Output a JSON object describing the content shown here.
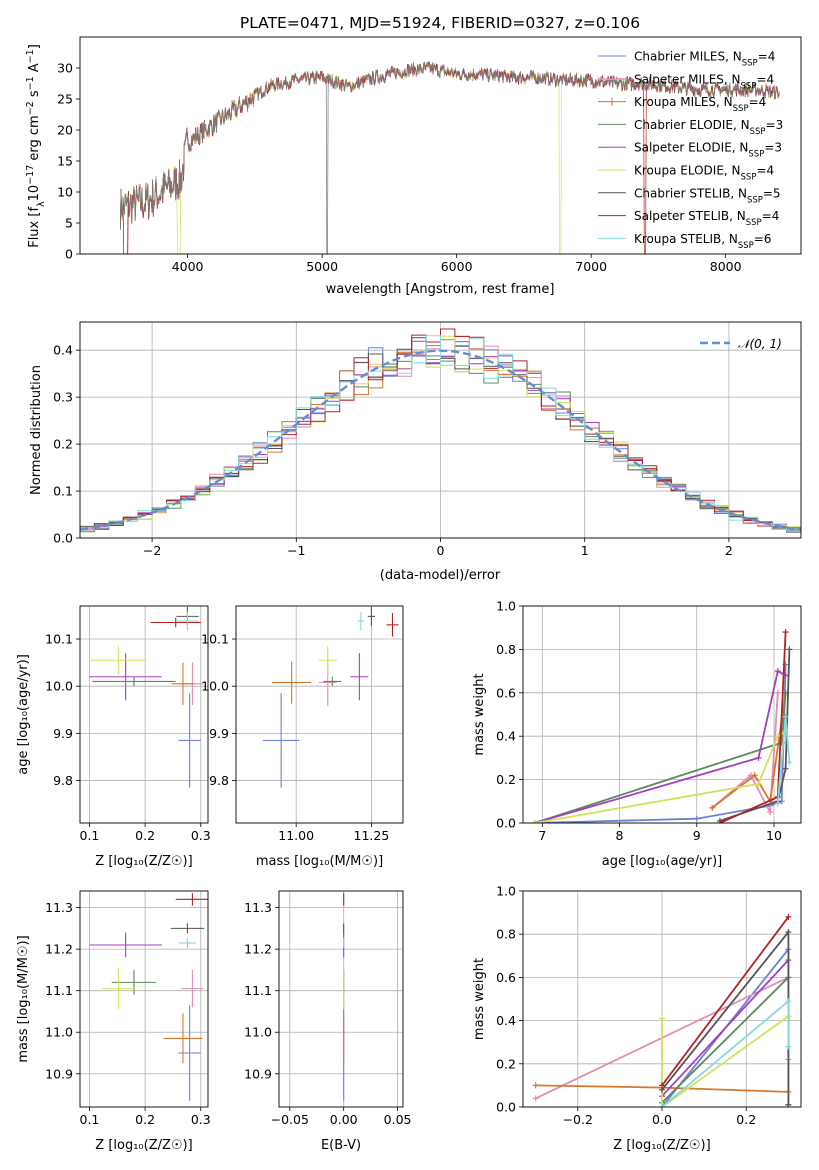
{
  "title": "PLATE=0471, MJD=51924, FIBERID=0327, z=0.106",
  "model_colors": [
    "#6a82d6",
    "#e38cb8",
    "#d8762b",
    "#5b8a5e",
    "#a63cbf",
    "#d0e25a",
    "#545454",
    "#b22424",
    "#88d8dc"
  ],
  "chart_data": [
    {
      "type": "line",
      "id": "spectrum",
      "xlabel": "wavelength [Angstrom, rest frame]",
      "ylabel": "Flux [f$_\\lambda$10$^{-17}$ erg cm$^{-2}$ s$^{-1}$ A$^{-1}$]",
      "ylabel_parts": [
        "Flux [f",
        "λ",
        "10",
        "−17",
        " erg cm",
        "−2",
        " s",
        "−1",
        " A",
        "−1",
        "]"
      ],
      "xlim": [
        3200,
        8560
      ],
      "ylim": [
        0,
        35
      ],
      "xticks": [
        4000,
        5000,
        6000,
        7000,
        8000
      ],
      "yticks": [
        0,
        5,
        10,
        15,
        20,
        25,
        30
      ],
      "grid": false,
      "legend_position": "top-right",
      "series": [
        {
          "name": "Chabrier MILES, N",
          "sub": "SSP",
          "tail": "=4"
        },
        {
          "name": "Salpeter MILES, N",
          "sub": "SSP",
          "tail": "=4"
        },
        {
          "name": "Kroupa MILES, N",
          "sub": "SSP",
          "tail": "=4"
        },
        {
          "name": "Chabrier ELODIE, N",
          "sub": "SSP",
          "tail": "=3"
        },
        {
          "name": "Salpeter ELODIE, N",
          "sub": "SSP",
          "tail": "=3"
        },
        {
          "name": "Kroupa ELODIE, N",
          "sub": "SSP",
          "tail": "=4"
        },
        {
          "name": "Chabrier STELIB, N",
          "sub": "SSP",
          "tail": "=5"
        },
        {
          "name": "Salpeter STELIB, N",
          "sub": "SSP",
          "tail": "=4"
        },
        {
          "name": "Kroupa STELIB, N",
          "sub": "SSP",
          "tail": "=6"
        }
      ],
      "data_trend": {
        "x": [
          3500,
          3700,
          3800,
          3950,
          4000,
          4200,
          4400,
          4600,
          4800,
          5000,
          5200,
          5400,
          5600,
          5800,
          6000,
          6200,
          6400,
          6600,
          6800,
          7000,
          7200,
          7400,
          7600,
          7800,
          8000,
          8200,
          8400
        ],
        "y": [
          7.5,
          8.5,
          10,
          12,
          18,
          21,
          24,
          27,
          28,
          28.5,
          27,
          28.5,
          29.5,
          30,
          29,
          29,
          28.5,
          28.5,
          28,
          28,
          27.5,
          27.5,
          27,
          26.5,
          26.5,
          26.5,
          26
        ]
      }
    },
    {
      "type": "step",
      "id": "residuals",
      "xlabel": "(data-model)/error",
      "ylabel": "Normed distribution",
      "xlim": [
        -2.5,
        2.5
      ],
      "ylim": [
        0,
        0.46
      ],
      "xticks": [
        -2,
        -1,
        0,
        1,
        2
      ],
      "yticks": [
        0.0,
        0.1,
        0.2,
        0.3,
        0.4
      ],
      "grid": true,
      "legend_position": "top-right",
      "legend": "𝒩(0, 1)",
      "bin_width": 0.1
    },
    {
      "type": "scatter",
      "id": "age_vs_Z",
      "xlabel": "Z [log₁₀(Z/Z☉)]",
      "ylabel": "age  [log₁₀(age/yr)]",
      "xlim": [
        0.083,
        0.313
      ],
      "ylim": [
        9.71,
        10.17
      ],
      "xticks": [
        0.1,
        0.2,
        0.3
      ],
      "yticks": [
        9.8,
        9.9,
        10.0,
        10.1
      ],
      "grid": true,
      "points": [
        {
          "x": 0.28,
          "y": 9.885,
          "xerr": 0.02,
          "yerr": 0.1
        },
        {
          "x": 0.285,
          "y": 10.005,
          "xerr": 0.02,
          "yerr": 0.045
        },
        {
          "x": 0.268,
          "y": 10.005,
          "xerr": 0.02,
          "yerr": 0.045
        },
        {
          "x": 0.18,
          "y": 10.01,
          "xerr": 0.075,
          "yerr": 0.01
        },
        {
          "x": 0.165,
          "y": 10.02,
          "xerr": 0.065,
          "yerr": 0.05
        },
        {
          "x": 0.152,
          "y": 10.055,
          "xerr": 0.05,
          "yerr": 0.03
        },
        {
          "x": 0.276,
          "y": 10.148,
          "xerr": 0.02,
          "yerr": 0.02
        },
        {
          "x": 0.255,
          "y": 10.135,
          "xerr": 0.045,
          "yerr": 0.01
        },
        {
          "x": 0.276,
          "y": 10.138,
          "xerr": 0.02,
          "yerr": 0.02
        }
      ]
    },
    {
      "type": "scatter",
      "id": "age_vs_mass",
      "xlabel": "mass [log₁₀(M/M☉)]",
      "ylabel": "",
      "xlim": [
        10.8,
        11.355
      ],
      "ylim": [
        9.71,
        10.17
      ],
      "xticks": [
        11.0,
        11.25
      ],
      "yticks": [
        9.8,
        9.9,
        10.0,
        10.1
      ],
      "grid": true,
      "points": [
        {
          "x": 10.95,
          "y": 9.885,
          "xerr": 0.06,
          "yerr": 0.1
        },
        {
          "x": 11.105,
          "y": 10.008,
          "xerr": 0.03,
          "yerr": 0.05
        },
        {
          "x": 10.985,
          "y": 10.008,
          "xerr": 0.065,
          "yerr": 0.045
        },
        {
          "x": 11.12,
          "y": 10.01,
          "xerr": 0.03,
          "yerr": 0.01
        },
        {
          "x": 11.21,
          "y": 10.02,
          "xerr": 0.03,
          "yerr": 0.05
        },
        {
          "x": 11.105,
          "y": 10.055,
          "xerr": 0.03,
          "yerr": 0.03
        },
        {
          "x": 11.25,
          "y": 10.148,
          "xerr": 0.012,
          "yerr": 0.02
        },
        {
          "x": 11.32,
          "y": 10.13,
          "xerr": 0.02,
          "yerr": 0.025
        },
        {
          "x": 11.215,
          "y": 10.138,
          "xerr": 0.012,
          "yerr": 0.02
        }
      ]
    },
    {
      "type": "line",
      "id": "mass_weight_vs_age",
      "xlabel": "age  [log₁₀(age/yr)]",
      "ylabel": "mass weight",
      "xlim": [
        6.75,
        10.35
      ],
      "ylim": [
        0,
        1.0
      ],
      "xticks": [
        7,
        8,
        9,
        10
      ],
      "yticks": [
        0.0,
        0.2,
        0.4,
        0.6,
        0.8,
        1.0
      ],
      "grid": true,
      "series": [
        {
          "x": [
            6.9,
            9.0,
            9.95,
            10.1,
            10.15
          ],
          "y": [
            0.0,
            0.02,
            0.08,
            0.1,
            0.73
          ]
        },
        {
          "x": [
            9.2,
            9.7,
            9.95,
            10.05
          ],
          "y": [
            0.07,
            0.22,
            0.05,
            0.6
          ]
        },
        {
          "x": [
            9.2,
            9.75,
            9.95,
            10.15
          ],
          "y": [
            0.07,
            0.22,
            0.1,
            0.6
          ]
        },
        {
          "x": [
            6.9,
            10.1,
            10.15
          ],
          "y": [
            0.0,
            0.37,
            0.6
          ]
        },
        {
          "x": [
            6.9,
            9.8,
            10.05,
            10.15
          ],
          "y": [
            0.0,
            0.3,
            0.7,
            0.68
          ]
        },
        {
          "x": [
            6.9,
            9.8,
            10.05,
            10.15
          ],
          "y": [
            0.0,
            0.18,
            0.4,
            0.42
          ]
        },
        {
          "x": [
            9.3,
            10.05,
            10.15,
            10.2
          ],
          "y": [
            0.01,
            0.1,
            0.25,
            0.8
          ]
        },
        {
          "x": [
            9.3,
            10.05,
            10.15
          ],
          "y": [
            0.0,
            0.12,
            0.88
          ]
        },
        {
          "x": [
            10.05,
            10.15,
            10.2
          ],
          "y": [
            0.09,
            0.49,
            0.28
          ]
        }
      ]
    },
    {
      "type": "scatter",
      "id": "mass_vs_Z",
      "xlabel": "Z [log₁₀(Z/Z☉)]",
      "ylabel": "mass [log₁₀(M/M☉)]",
      "xlim": [
        0.083,
        0.313
      ],
      "ylim": [
        10.82,
        11.34
      ],
      "xticks": [
        0.1,
        0.2,
        0.3
      ],
      "yticks": [
        10.9,
        11.0,
        11.1,
        11.2,
        11.3
      ],
      "grid": true,
      "points": [
        {
          "x": 0.28,
          "y": 10.95,
          "xerr": 0.02,
          "yerr": 0.115
        },
        {
          "x": 0.285,
          "y": 11.105,
          "xerr": 0.02,
          "yerr": 0.045
        },
        {
          "x": 0.268,
          "y": 10.985,
          "xerr": 0.035,
          "yerr": 0.06
        },
        {
          "x": 0.18,
          "y": 11.12,
          "xerr": 0.04,
          "yerr": 0.03
        },
        {
          "x": 0.165,
          "y": 11.21,
          "xerr": 0.065,
          "yerr": 0.03
        },
        {
          "x": 0.152,
          "y": 11.105,
          "xerr": 0.03,
          "yerr": 0.05
        },
        {
          "x": 0.276,
          "y": 11.25,
          "xerr": 0.03,
          "yerr": 0.012
        },
        {
          "x": 0.285,
          "y": 11.32,
          "xerr": 0.03,
          "yerr": 0.015
        },
        {
          "x": 0.276,
          "y": 11.215,
          "xerr": 0.015,
          "yerr": 0.012
        }
      ]
    },
    {
      "type": "scatter",
      "id": "mass_vs_ebv",
      "xlabel": "E(B-V)",
      "ylabel": "",
      "xlim": [
        -0.06,
        0.055
      ],
      "ylim": [
        10.82,
        11.34
      ],
      "xticks": [
        -0.05,
        0.0,
        0.05
      ],
      "yticks": [
        10.9,
        11.0,
        11.1,
        11.2,
        11.3
      ],
      "grid": true,
      "points": [
        {
          "x": 0.0,
          "y": 10.95,
          "xerr": 0.0,
          "yerr": 0.115
        },
        {
          "x": 0.0,
          "y": 11.105,
          "xerr": 0.0,
          "yerr": 0.045
        },
        {
          "x": 0.0,
          "y": 10.985,
          "xerr": 0.0,
          "yerr": 0.06
        },
        {
          "x": 0.0,
          "y": 11.12,
          "xerr": 0.0,
          "yerr": 0.03
        },
        {
          "x": 0.0,
          "y": 11.21,
          "xerr": 0.0,
          "yerr": 0.03
        },
        {
          "x": 0.0,
          "y": 11.105,
          "xerr": 0.0,
          "yerr": 0.05
        },
        {
          "x": 0.0,
          "y": 11.25,
          "xerr": 0.0,
          "yerr": 0.012
        },
        {
          "x": 0.0,
          "y": 11.32,
          "xerr": 0.0,
          "yerr": 0.015
        },
        {
          "x": 0.0,
          "y": 11.215,
          "xerr": 0.0,
          "yerr": 0.012
        }
      ]
    },
    {
      "type": "line",
      "id": "mass_weight_vs_Z",
      "xlabel": "Z [log₁₀(Z/Z☉)]",
      "ylabel": "mass weight",
      "xlim": [
        -0.33,
        0.33
      ],
      "ylim": [
        0,
        1.0
      ],
      "xticks": [
        -0.2,
        0.0,
        0.2
      ],
      "yticks": [
        0.0,
        0.2,
        0.4,
        0.6,
        0.8,
        1.0
      ],
      "grid": true,
      "series": [
        {
          "x": [
            0.0,
            0.3,
            0.3
          ],
          "y": [
            0.0,
            0.73,
            0.01
          ]
        },
        {
          "x": [
            -0.3,
            0.3,
            0.3
          ],
          "y": [
            0.04,
            0.6,
            0.22
          ]
        },
        {
          "x": [
            -0.3,
            0.0,
            0.3
          ],
          "y": [
            0.1,
            0.09,
            0.07
          ]
        },
        {
          "x": [
            0.0,
            0.3
          ],
          "y": [
            0.02,
            0.6
          ]
        },
        {
          "x": [
            0.0,
            0.3
          ],
          "y": [
            0.05,
            0.68
          ]
        },
        {
          "x": [
            0.0,
            0.0,
            0.3,
            0.3
          ],
          "y": [
            0.41,
            0.0,
            0.42,
            0.0
          ]
        },
        {
          "x": [
            0.0,
            0.3,
            0.3
          ],
          "y": [
            0.08,
            0.81,
            0.01
          ]
        },
        {
          "x": [
            0.0,
            0.3
          ],
          "y": [
            0.1,
            0.88
          ]
        },
        {
          "x": [
            0.0,
            0.3,
            0.3
          ],
          "y": [
            0.0,
            0.49,
            0.28
          ]
        }
      ]
    }
  ]
}
